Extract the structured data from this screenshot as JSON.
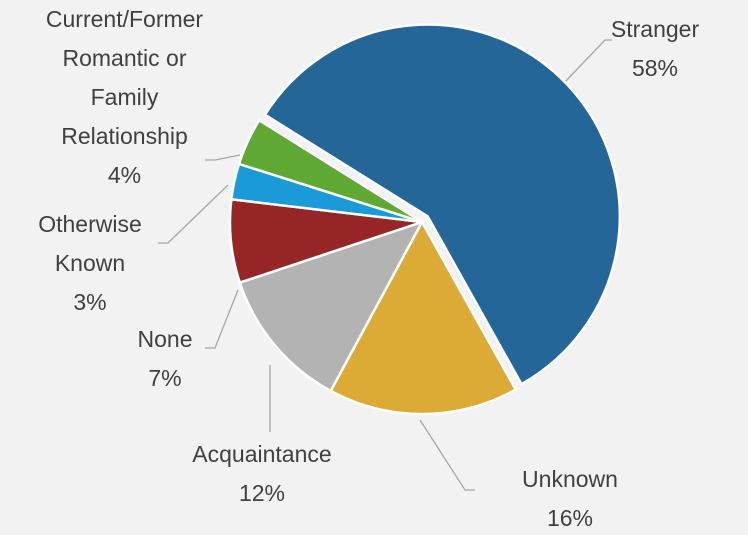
{
  "chart_data": {
    "type": "pie",
    "categories": [
      "Stranger",
      "Unknown",
      "Acquaintance",
      "None",
      "Otherwise Known",
      "Current/Former Romantic or Family Relationship"
    ],
    "values": [
      58,
      16,
      12,
      7,
      3,
      4
    ],
    "value_labels": [
      "58%",
      "16%",
      "12%",
      "7%",
      "3%",
      "4%"
    ],
    "colors": [
      "#236697",
      "#dcab35",
      "#b3b3b3",
      "#962525",
      "#1a9ad6",
      "#5fa834"
    ]
  }
}
